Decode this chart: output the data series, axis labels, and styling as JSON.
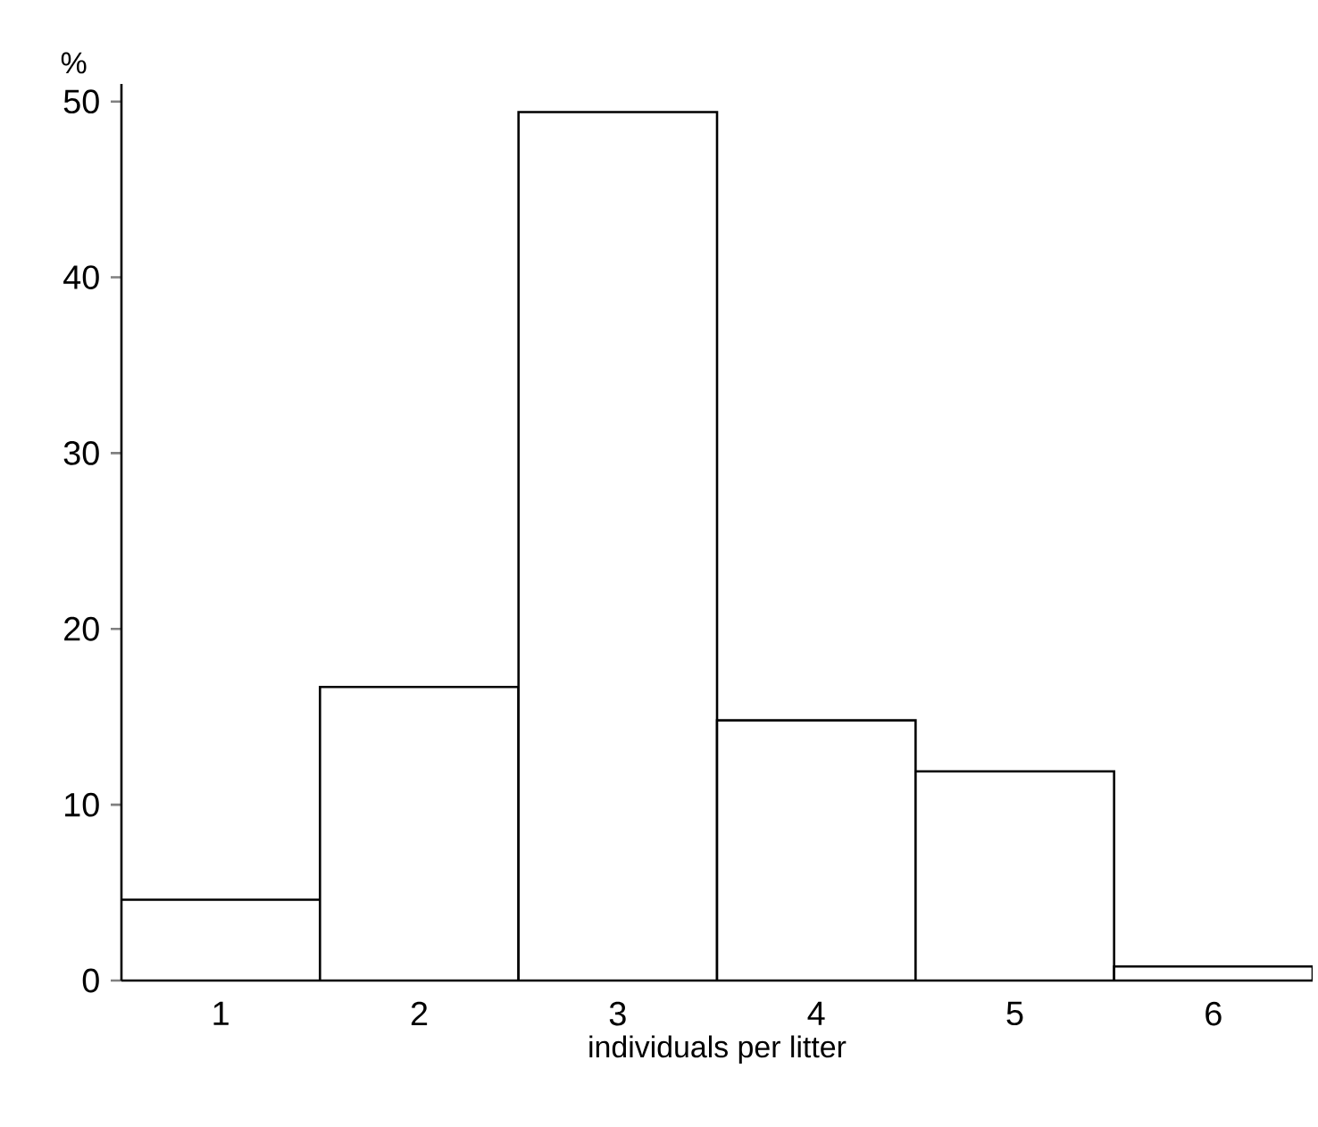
{
  "chart_data": {
    "type": "bar",
    "xlabel": "individuals per litter",
    "ylabel": "%",
    "categories": [
      "1",
      "2",
      "3",
      "4",
      "5",
      "6"
    ],
    "values": [
      4.6,
      16.7,
      49.4,
      14.8,
      11.9,
      0.8
    ],
    "color": "#ffffff",
    "ylim": [
      0,
      51
    ],
    "yticks": [
      0,
      10,
      20,
      30,
      40,
      50
    ]
  }
}
